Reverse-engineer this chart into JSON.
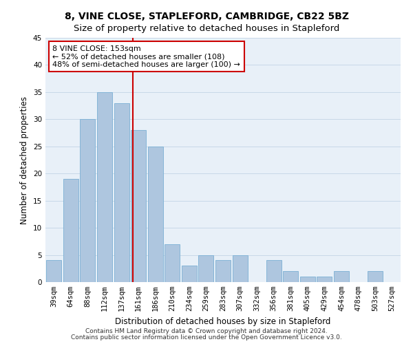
{
  "title1": "8, VINE CLOSE, STAPLEFORD, CAMBRIDGE, CB22 5BZ",
  "title2": "Size of property relative to detached houses in Stapleford",
  "xlabel": "Distribution of detached houses by size in Stapleford",
  "ylabel": "Number of detached properties",
  "footnote1": "Contains HM Land Registry data © Crown copyright and database right 2024.",
  "footnote2": "Contains public sector information licensed under the Open Government Licence v3.0.",
  "bin_labels": [
    "39sqm",
    "64sqm",
    "88sqm",
    "112sqm",
    "137sqm",
    "161sqm",
    "186sqm",
    "210sqm",
    "234sqm",
    "259sqm",
    "283sqm",
    "307sqm",
    "332sqm",
    "356sqm",
    "381sqm",
    "405sqm",
    "429sqm",
    "454sqm",
    "478sqm",
    "503sqm",
    "527sqm"
  ],
  "values": [
    4,
    19,
    30,
    35,
    33,
    28,
    25,
    7,
    3,
    5,
    4,
    5,
    0,
    4,
    2,
    1,
    1,
    2,
    0,
    2,
    0
  ],
  "bar_color": "#aec6df",
  "bar_edge_color": "#7aafd4",
  "grid_color": "#c8d8e8",
  "background_color": "#e8f0f8",
  "vline_color": "#cc0000",
  "annotation_text": "8 VINE CLOSE: 153sqm\n← 52% of detached houses are smaller (108)\n48% of semi-detached houses are larger (100) →",
  "annotation_box_color": "#ffffff",
  "annotation_box_edge_color": "#cc0000",
  "ylim": [
    0,
    45
  ],
  "yticks": [
    0,
    5,
    10,
    15,
    20,
    25,
    30,
    35,
    40,
    45
  ],
  "title_fontsize": 10,
  "subtitle_fontsize": 9.5,
  "axis_label_fontsize": 8.5,
  "tick_fontsize": 7.5,
  "annotation_fontsize": 8,
  "footnote_fontsize": 6.5
}
